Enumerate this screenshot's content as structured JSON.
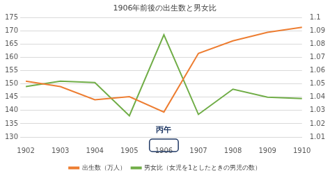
{
  "chart_data": {
    "type": "line",
    "title": "1906年前後の出生数と男女比",
    "categories": [
      "1902",
      "1903",
      "1904",
      "1905",
      "1906",
      "1907",
      "1908",
      "1909",
      "1910"
    ],
    "series": [
      {
        "name": "出生数（万人）",
        "color": "#ed7d31",
        "marker": "none",
        "values": [
          151,
          149,
          144,
          145.2,
          139.4,
          161.5,
          166.2,
          169.4,
          171.3
        ]
      },
      {
        "name": "男女比（女児を1としたときの男児の数）",
        "color": "#70ad47",
        "marker": "none",
        "axis": "y2",
        "values": [
          1.048,
          1.052,
          1.051,
          1.026,
          1.087,
          1.027,
          1.046,
          1.04,
          1.039
        ]
      }
    ],
    "ylim": [
      130,
      175
    ],
    "yticks": [
      130,
      135,
      140,
      145,
      150,
      155,
      160,
      165,
      170,
      175
    ],
    "y2lim": [
      1.01,
      1.1
    ],
    "y2ticks": [
      1.01,
      1.02,
      1.03,
      1.04,
      1.05,
      1.06,
      1.07,
      1.08,
      1.09,
      1.1
    ],
    "annotations": [
      {
        "x": "1906",
        "text": "丙午"
      }
    ],
    "grid": true,
    "legend": "bottom"
  }
}
